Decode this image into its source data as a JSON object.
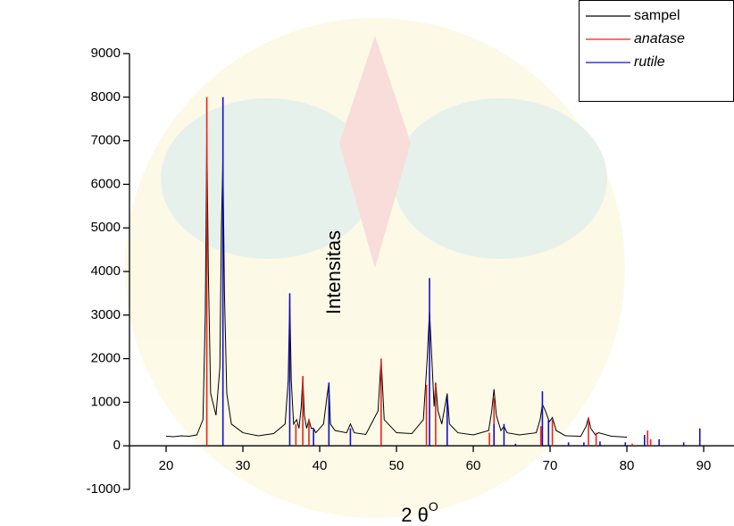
{
  "chart_data": {
    "type": "xrd",
    "x_label": "2 θ",
    "x_label_sup": "O",
    "y_label": "Intensitas",
    "xlim": [
      15.23,
      93.95
    ],
    "ylim": [
      -1000,
      9000
    ],
    "xticks": [
      20,
      30,
      40,
      50,
      60,
      70,
      80,
      90
    ],
    "yticks": [
      -1000,
      0,
      1000,
      2000,
      3000,
      4000,
      5000,
      6000,
      7000,
      8000,
      9000
    ],
    "legend": "top-right",
    "series": [
      {
        "name": "sampel",
        "color": "#000000",
        "kind": "line",
        "italic": false,
        "x": [
          20,
          21,
          22,
          23,
          24,
          24.8,
          25.1,
          25.3,
          25.5,
          25.8,
          26.5,
          27.0,
          27.2,
          27.4,
          27.6,
          27.9,
          28.5,
          30,
          32,
          34,
          35.5,
          35.9,
          36.1,
          36.3,
          36.6,
          37.0,
          37.3,
          37.6,
          37.8,
          38.0,
          38.3,
          38.6,
          38.9,
          39.2,
          39.5,
          40.5,
          41.0,
          41.2,
          41.4,
          42,
          43.5,
          44.0,
          44.5,
          46,
          47.6,
          48.0,
          48.4,
          50,
          52,
          53.5,
          54.0,
          54.3,
          54.6,
          54.9,
          55.1,
          55.4,
          55.9,
          56.4,
          56.6,
          56.9,
          58,
          60,
          62.0,
          62.4,
          62.7,
          63.0,
          63.6,
          64.0,
          64.4,
          66,
          68.2,
          68.7,
          69.0,
          69.4,
          69.9,
          70.3,
          70.8,
          72,
          74,
          74.7,
          75.0,
          75.3,
          75.9,
          76.3,
          78,
          80
        ],
        "values": [
          220,
          210,
          230,
          220,
          250,
          600,
          3000,
          7200,
          4000,
          1200,
          700,
          1800,
          5000,
          6600,
          3500,
          1200,
          500,
          300,
          230,
          280,
          500,
          1500,
          3400,
          1500,
          500,
          600,
          400,
          900,
          1600,
          700,
          400,
          600,
          400,
          400,
          300,
          500,
          1200,
          1450,
          500,
          350,
          300,
          500,
          300,
          260,
          800,
          2000,
          600,
          300,
          280,
          600,
          2000,
          3100,
          2000,
          900,
          1450,
          800,
          500,
          1000,
          1200,
          500,
          300,
          250,
          350,
          800,
          1300,
          700,
          350,
          450,
          300,
          250,
          300,
          600,
          950,
          800,
          550,
          650,
          350,
          230,
          220,
          450,
          650,
          400,
          250,
          300,
          220,
          200
        ]
      },
      {
        "name": "anatase",
        "color": "#e8251c",
        "kind": "stick",
        "italic": true,
        "x": [
          25.3,
          36.9,
          37.8,
          38.6,
          48.0,
          53.9,
          55.1,
          62.1,
          62.7,
          68.8,
          70.3,
          75.0,
          76.0,
          80.7,
          82.7,
          83.1
        ],
        "values": [
          8000,
          500,
          1600,
          600,
          2000,
          1400,
          1400,
          300,
          1100,
          450,
          600,
          650,
          300,
          50,
          350,
          150
        ]
      },
      {
        "name": "rutile",
        "color": "#1010c8",
        "kind": "stick",
        "italic": true,
        "x": [
          27.4,
          36.1,
          39.2,
          41.2,
          44.0,
          54.3,
          56.6,
          62.7,
          64.0,
          65.5,
          69.0,
          69.8,
          72.4,
          74.4,
          76.5,
          79.8,
          82.3,
          84.2,
          87.4,
          89.5
        ],
        "values": [
          8000,
          3500,
          400,
          1450,
          400,
          3850,
          1100,
          500,
          500,
          50,
          1250,
          600,
          80,
          80,
          100,
          80,
          250,
          150,
          80,
          400
        ]
      }
    ]
  }
}
